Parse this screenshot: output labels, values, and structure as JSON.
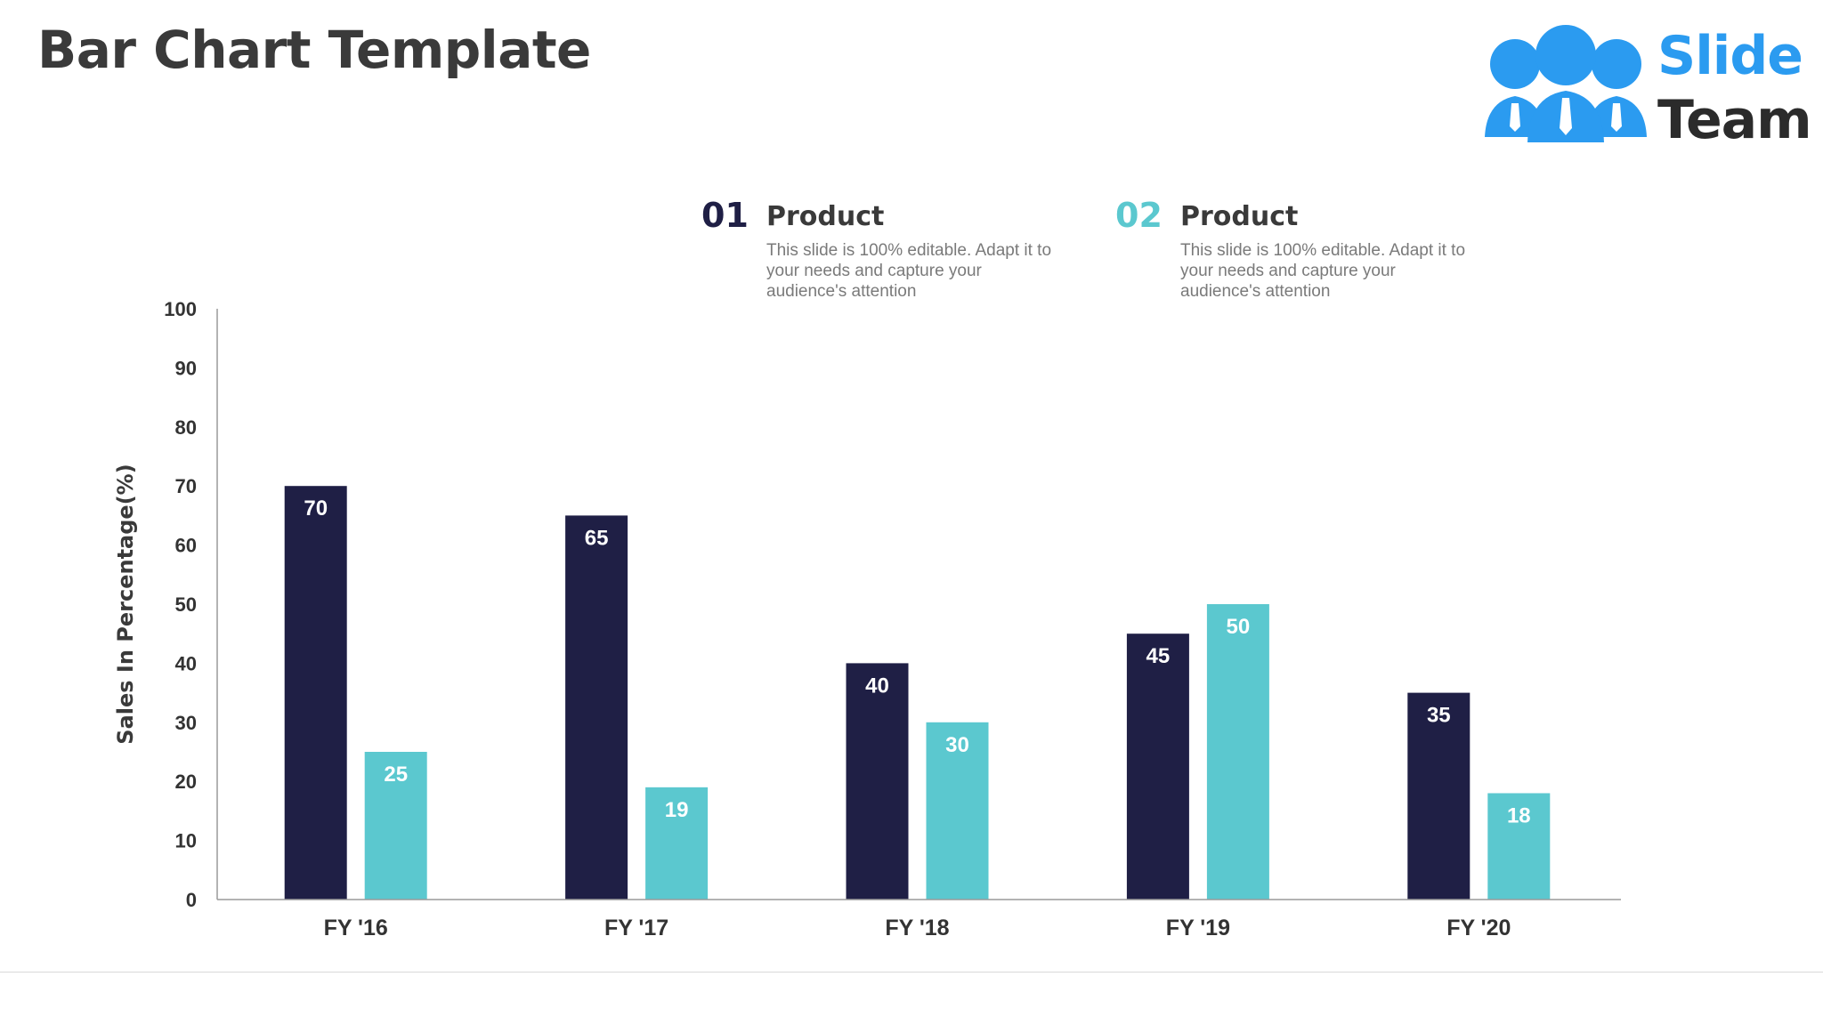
{
  "slide": {
    "title": "Bar Chart Template"
  },
  "logo": {
    "word1": "Slide",
    "word2": "Team",
    "icon": "team-people-icon",
    "colors": {
      "primary": "#2b9bf0",
      "text": "#2b2b2b"
    }
  },
  "legend": [
    {
      "number": "01",
      "label": "Product",
      "description": "This slide is 100% editable. Adapt it to your needs and capture your audience's attention",
      "color": "#1f1f45"
    },
    {
      "number": "02",
      "label": "Product",
      "description": "This slide is 100% editable. Adapt it to your needs and capture your audience's attention",
      "color": "#5bc8cf"
    }
  ],
  "chart_data": {
    "type": "bar",
    "categories": [
      "FY '16",
      "FY '17",
      "FY '18",
      "FY '19",
      "FY '20"
    ],
    "series": [
      {
        "name": "Product",
        "values": [
          70,
          65,
          40,
          45,
          35
        ],
        "color": "#1f1f45"
      },
      {
        "name": "Product",
        "values": [
          25,
          19,
          30,
          50,
          18
        ],
        "color": "#5bc8cf"
      }
    ],
    "title": "",
    "xlabel": "",
    "ylabel": "Sales In Percentage(%)",
    "ylim": [
      0,
      100
    ],
    "yticks": [
      0,
      10,
      20,
      30,
      40,
      50,
      60,
      70,
      80,
      90,
      100
    ],
    "grid": false,
    "data_labels": true
  }
}
